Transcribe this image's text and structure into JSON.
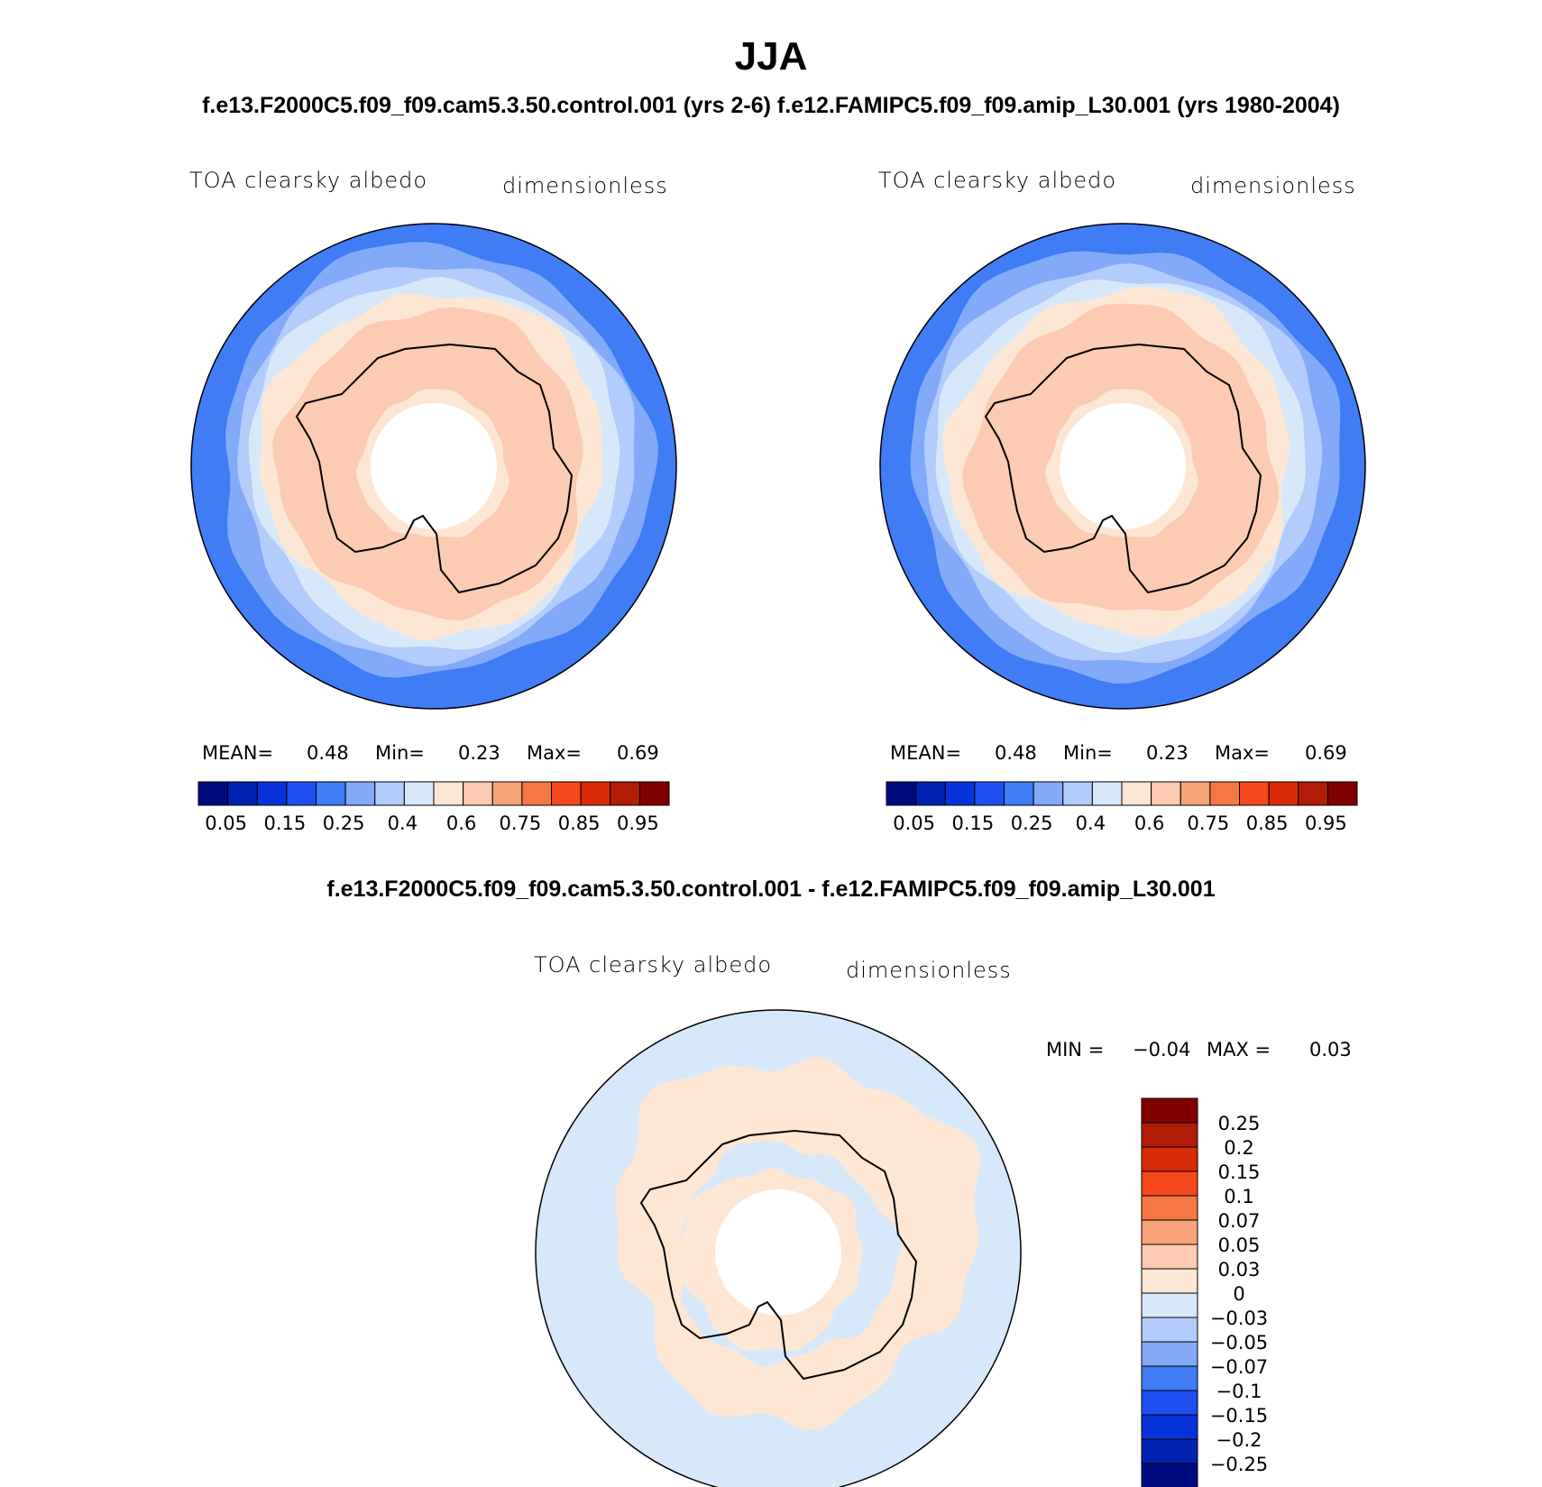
{
  "main_title": "JJA",
  "subtitle": "f.e13.F2000C5.f09_f09.cam5.3.50.control.001 (yrs 2-6)  f.e12.FAMIPC5.f09_f09.amip_L30.001 (yrs 1980-2004)",
  "diff_title": "f.e13.F2000C5.f09_f09.cam5.3.50.control.001 - f.e12.FAMIPC5.f09_f09.amip_L30.001",
  "colors": {
    "abs_scale": [
      "#000a80",
      "#0022b0",
      "#0733db",
      "#1f4ff2",
      "#3f7cf6",
      "#82aaf8",
      "#b2ccfb",
      "#d8e8fb",
      "#fde6d4",
      "#fccbb2",
      "#f8a47a",
      "#f57743",
      "#f6481c",
      "#da2b08",
      "#b11c06",
      "#800000"
    ],
    "diff_scale": [
      "#800000",
      "#b11c06",
      "#da2b08",
      "#f6481c",
      "#f57743",
      "#f8a47a",
      "#fccbb2",
      "#fde6d4",
      "#d8e8fb",
      "#b2ccfb",
      "#82aaf8",
      "#3f7cf6",
      "#1f4ff2",
      "#0733db",
      "#0022b0",
      "#000a80"
    ],
    "coastline": "#000000"
  },
  "panels": [
    {
      "variable": "TOA clearsky albedo",
      "units": "dimensionless",
      "mean_label": "MEAN=",
      "mean": "0.48",
      "min_label": "Min=",
      "min": "0.23",
      "max_label": "Max=",
      "max": "0.69"
    },
    {
      "variable": "TOA clearsky albedo",
      "units": "dimensionless",
      "mean_label": "MEAN=",
      "mean": "0.48",
      "min_label": "Min=",
      "min": "0.23",
      "max_label": "Max=",
      "max": "0.69"
    }
  ],
  "diff_panel": {
    "variable": "TOA clearsky albedo",
    "units": "dimensionless",
    "min_label": "MIN =",
    "min": "−0.04",
    "max_label": "MAX =",
    "max": "0.03"
  },
  "chart_data": [
    {
      "type": "heatmap",
      "projection": "south-polar-stereographic",
      "title": "TOA clearsky albedo",
      "units": "dimensionless",
      "experiment": "f.e13.F2000C5.f09_f09.cam5.3.50.control.001 (yrs 2-6)",
      "colorbar_ticks": [
        "0.05",
        "0.15",
        "0.25",
        "0.4",
        "0.6",
        "0.75",
        "0.85",
        "0.95"
      ],
      "mean": 0.48,
      "min": 0.23,
      "max": 0.69
    },
    {
      "type": "heatmap",
      "projection": "south-polar-stereographic",
      "title": "TOA clearsky albedo",
      "units": "dimensionless",
      "experiment": "f.e12.FAMIPC5.f09_f09.amip_L30.001 (yrs 1980-2004)",
      "colorbar_ticks": [
        "0.05",
        "0.15",
        "0.25",
        "0.4",
        "0.6",
        "0.75",
        "0.85",
        "0.95"
      ],
      "mean": 0.48,
      "min": 0.23,
      "max": 0.69
    },
    {
      "type": "heatmap",
      "projection": "south-polar-stereographic",
      "title": "TOA clearsky albedo",
      "units": "dimensionless",
      "experiment": "difference",
      "colorbar_ticks": [
        "0.25",
        "0.2",
        "0.15",
        "0.1",
        "0.07",
        "0.05",
        "0.03",
        "0",
        "−0.03",
        "−0.05",
        "−0.07",
        "−0.1",
        "−0.15",
        "−0.2",
        "−0.25"
      ],
      "min": -0.04,
      "max": 0.03
    }
  ]
}
